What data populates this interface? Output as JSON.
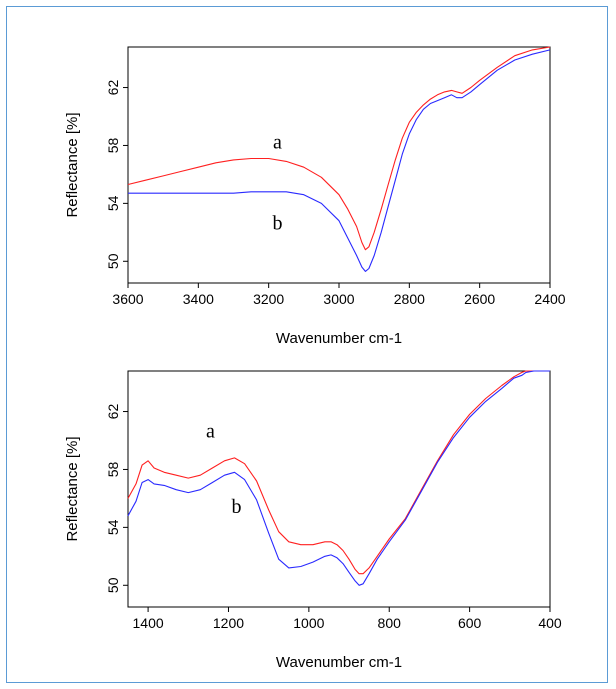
{
  "colors": {
    "a": "#ff2020",
    "b": "#2a2aff",
    "frame": "#5b9bd5",
    "axis": "#000000"
  },
  "chart_data": [
    {
      "type": "line",
      "xlabel": "Wavenumber cm-1",
      "ylabel": "Reflectance [%]",
      "xlim": [
        3600,
        2400
      ],
      "ylim": [
        48.5,
        64.8
      ],
      "x_reversed": true,
      "xticks": [
        3600,
        3400,
        3200,
        3000,
        2800,
        2600,
        2400
      ],
      "yticks": [
        50,
        54,
        58,
        62
      ],
      "curve_labels": [
        {
          "text": "a",
          "x": 3175,
          "y": 57.8
        },
        {
          "text": "b",
          "x": 3175,
          "y": 52.2
        }
      ],
      "series": [
        {
          "name": "a",
          "color": "#ff2020",
          "x": [
            3600,
            3550,
            3500,
            3450,
            3400,
            3350,
            3300,
            3250,
            3200,
            3150,
            3100,
            3050,
            3000,
            2975,
            2950,
            2935,
            2925,
            2915,
            2900,
            2880,
            2860,
            2840,
            2820,
            2800,
            2780,
            2760,
            2740,
            2720,
            2700,
            2680,
            2665,
            2650,
            2625,
            2600,
            2550,
            2500,
            2450,
            2400
          ],
          "y": [
            55.3,
            55.6,
            55.9,
            56.2,
            56.5,
            56.8,
            57.0,
            57.1,
            57.1,
            56.9,
            56.5,
            55.8,
            54.6,
            53.6,
            52.4,
            51.3,
            50.8,
            51.0,
            52.0,
            53.6,
            55.3,
            57.0,
            58.5,
            59.6,
            60.3,
            60.8,
            61.2,
            61.5,
            61.7,
            61.8,
            61.7,
            61.6,
            62.0,
            62.5,
            63.4,
            64.2,
            64.6,
            64.8
          ]
        },
        {
          "name": "b",
          "color": "#2a2aff",
          "x": [
            3600,
            3550,
            3500,
            3450,
            3400,
            3350,
            3300,
            3250,
            3200,
            3150,
            3100,
            3050,
            3000,
            2975,
            2950,
            2935,
            2925,
            2915,
            2900,
            2880,
            2860,
            2840,
            2820,
            2800,
            2780,
            2760,
            2740,
            2720,
            2700,
            2680,
            2665,
            2650,
            2625,
            2600,
            2550,
            2500,
            2450,
            2400
          ],
          "y": [
            54.7,
            54.7,
            54.7,
            54.7,
            54.7,
            54.7,
            54.7,
            54.8,
            54.8,
            54.8,
            54.6,
            54.0,
            52.8,
            51.6,
            50.4,
            49.6,
            49.3,
            49.5,
            50.4,
            52.0,
            53.8,
            55.6,
            57.4,
            58.8,
            59.8,
            60.5,
            60.9,
            61.1,
            61.3,
            61.5,
            61.3,
            61.3,
            61.7,
            62.2,
            63.2,
            63.9,
            64.3,
            64.6
          ]
        }
      ]
    },
    {
      "type": "line",
      "xlabel": "Wavenumber cm-1",
      "ylabel": "Reflectance [%]",
      "xlim": [
        1450,
        400
      ],
      "ylim": [
        48.5,
        64.8
      ],
      "x_reversed": true,
      "xticks": [
        1400,
        1200,
        1000,
        800,
        600,
        400
      ],
      "yticks": [
        50,
        54,
        58,
        62
      ],
      "curve_labels": [
        {
          "text": "a",
          "x": 1245,
          "y": 60.2
        },
        {
          "text": "b",
          "x": 1180,
          "y": 55.0
        }
      ],
      "series": [
        {
          "name": "a",
          "color": "#ff2020",
          "x": [
            1450,
            1430,
            1415,
            1400,
            1385,
            1360,
            1330,
            1300,
            1270,
            1240,
            1210,
            1185,
            1160,
            1130,
            1100,
            1075,
            1050,
            1020,
            990,
            960,
            945,
            930,
            915,
            900,
            885,
            875,
            865,
            850,
            830,
            800,
            760,
            720,
            680,
            640,
            600,
            560,
            520,
            490,
            470,
            460,
            440,
            420,
            400
          ],
          "y": [
            56.0,
            57.0,
            58.3,
            58.6,
            58.1,
            57.8,
            57.6,
            57.4,
            57.6,
            58.1,
            58.6,
            58.8,
            58.4,
            57.2,
            55.2,
            53.7,
            53.0,
            52.8,
            52.8,
            53.0,
            53.0,
            52.8,
            52.4,
            51.8,
            51.1,
            50.8,
            50.8,
            51.2,
            52.0,
            53.2,
            54.6,
            56.6,
            58.6,
            60.4,
            61.8,
            62.9,
            63.8,
            64.4,
            64.7,
            64.8,
            64.8,
            64.8,
            64.8
          ]
        },
        {
          "name": "b",
          "color": "#2a2aff",
          "x": [
            1450,
            1430,
            1415,
            1400,
            1385,
            1360,
            1330,
            1300,
            1270,
            1240,
            1210,
            1185,
            1160,
            1130,
            1100,
            1075,
            1050,
            1020,
            990,
            960,
            945,
            930,
            915,
            900,
            885,
            875,
            865,
            850,
            830,
            800,
            760,
            720,
            680,
            640,
            600,
            560,
            520,
            490,
            470,
            460,
            440,
            420,
            400
          ],
          "y": [
            54.8,
            55.8,
            57.1,
            57.3,
            57.0,
            56.9,
            56.6,
            56.4,
            56.6,
            57.1,
            57.6,
            57.8,
            57.3,
            55.9,
            53.6,
            51.8,
            51.2,
            51.3,
            51.6,
            52.0,
            52.1,
            51.9,
            51.5,
            50.9,
            50.3,
            50.0,
            50.1,
            50.8,
            51.8,
            53.0,
            54.5,
            56.5,
            58.5,
            60.2,
            61.6,
            62.7,
            63.6,
            64.3,
            64.5,
            64.7,
            64.8,
            64.8,
            64.8
          ]
        }
      ]
    }
  ]
}
